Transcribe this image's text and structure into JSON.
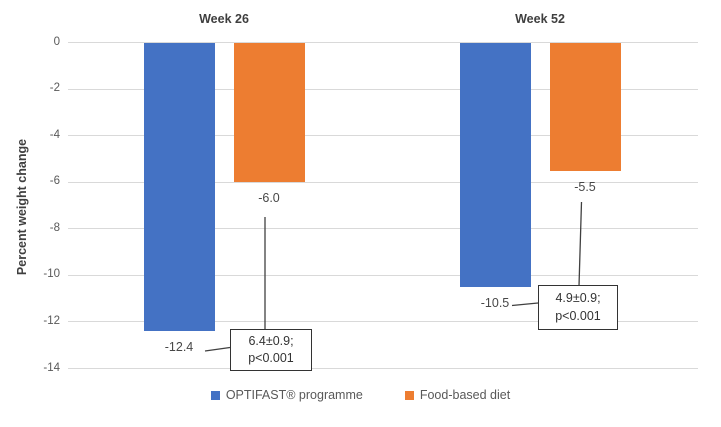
{
  "chart_data": {
    "type": "bar",
    "categories": [
      "Week 26",
      "Week 52"
    ],
    "series": [
      {
        "name": "OPTIFAST® programme",
        "color": "#4472C4",
        "values": [
          -12.4,
          -10.5
        ],
        "data_labels": [
          "-12.4",
          "-10.5"
        ]
      },
      {
        "name": "Food-based diet",
        "color": "#ED7D31",
        "values": [
          -6.0,
          -5.5
        ],
        "data_labels": [
          "-6.0",
          "-5.5"
        ]
      }
    ],
    "ylabel": "Percent weight change",
    "ylim": [
      -14,
      0
    ],
    "yticks": [
      0,
      -2,
      -4,
      -6,
      -8,
      -10,
      -12,
      -14
    ],
    "grid": true,
    "legend_position": "bottom",
    "annotations": [
      {
        "line1": "6.4±0.9;",
        "line2": "p<0.001",
        "attached_to": "Week 26"
      },
      {
        "line1": "4.9±0.9;",
        "line2": "p<0.001",
        "attached_to": "Week 52"
      }
    ]
  },
  "colors": {
    "gridline": "#d9d9d9",
    "tick_text": "#595959",
    "axis_title_text": "#3f3f3f",
    "annotation_border": "#333333",
    "connector_line": "#404040",
    "background": "#ffffff"
  }
}
